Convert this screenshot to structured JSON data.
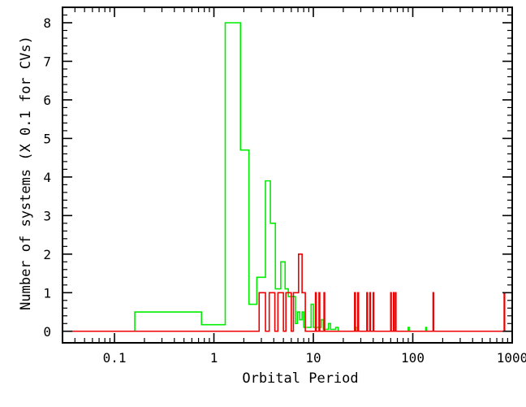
{
  "chart_data": {
    "type": "line",
    "xlabel": "Orbital Period",
    "ylabel": "Number of systems (X 0.1 for CVs)",
    "x_scale": "log",
    "xlim": [
      0.03,
      1000
    ],
    "ylim": [
      -0.3,
      8.4
    ],
    "x_major_ticks": [
      {
        "value": 0.1,
        "label": "0.1"
      },
      {
        "value": 1,
        "label": "1"
      },
      {
        "value": 10,
        "label": "10"
      },
      {
        "value": 100,
        "label": "100"
      },
      {
        "value": 1000,
        "label": "1000"
      }
    ],
    "y_major_ticks": [
      {
        "value": 0,
        "label": "0"
      },
      {
        "value": 1,
        "label": "1"
      },
      {
        "value": 2,
        "label": "2"
      },
      {
        "value": 3,
        "label": "3"
      },
      {
        "value": 4,
        "label": "4"
      },
      {
        "value": 5,
        "label": "5"
      },
      {
        "value": 6,
        "label": "6"
      },
      {
        "value": 7,
        "label": "7"
      },
      {
        "value": 8,
        "label": "8"
      }
    ],
    "grid": false,
    "series": [
      {
        "color": "#00ee00",
        "style": "step",
        "points": [
          [
            0.16,
            0
          ],
          [
            0.16,
            0.5
          ],
          [
            0.75,
            0.5
          ],
          [
            0.75,
            0.17
          ],
          [
            1.3,
            0.17
          ],
          [
            1.3,
            8.0
          ],
          [
            1.85,
            8.0
          ],
          [
            1.85,
            4.7
          ],
          [
            2.25,
            4.7
          ],
          [
            2.25,
            0.7
          ],
          [
            2.7,
            0.7
          ],
          [
            2.7,
            1.4
          ],
          [
            3.3,
            1.4
          ],
          [
            3.3,
            3.9
          ],
          [
            3.7,
            3.9
          ],
          [
            3.7,
            2.8
          ],
          [
            4.15,
            2.8
          ],
          [
            4.15,
            1.1
          ],
          [
            4.7,
            1.1
          ],
          [
            4.7,
            1.8
          ],
          [
            5.2,
            1.8
          ],
          [
            5.2,
            1.1
          ],
          [
            5.6,
            1.1
          ],
          [
            5.6,
            0.9
          ],
          [
            6.6,
            0.9
          ],
          [
            6.6,
            0.2
          ],
          [
            6.9,
            0.2
          ],
          [
            6.9,
            0.5
          ],
          [
            7.3,
            0.5
          ],
          [
            7.3,
            0.3
          ],
          [
            7.7,
            0.3
          ],
          [
            7.7,
            0.5
          ],
          [
            8.0,
            0.5
          ],
          [
            8.0,
            0.1
          ],
          [
            9.5,
            0.1
          ],
          [
            9.5,
            0.7
          ],
          [
            10.0,
            0.7
          ],
          [
            10.0,
            0.1
          ],
          [
            12.0,
            0.1
          ],
          [
            12.0,
            0.3
          ],
          [
            12.6,
            0.3
          ],
          [
            12.6,
            0.05
          ],
          [
            14.2,
            0.05
          ],
          [
            14.2,
            0.2
          ],
          [
            14.9,
            0.2
          ],
          [
            14.9,
            0.05
          ],
          [
            16.8,
            0.05
          ],
          [
            16.8,
            0.1
          ],
          [
            17.8,
            0.1
          ],
          [
            17.8,
            0
          ],
          [
            27.0,
            0
          ],
          [
            27.0,
            0.1
          ],
          [
            28.0,
            0.1
          ],
          [
            28.0,
            0
          ],
          [
            90.0,
            0
          ],
          [
            90.0,
            0.1
          ],
          [
            92.0,
            0.1
          ],
          [
            92.0,
            0
          ],
          [
            135.0,
            0
          ],
          [
            135.0,
            0.1
          ],
          [
            138.0,
            0.1
          ],
          [
            138.0,
            0
          ]
        ]
      },
      {
        "color": "#ee0000",
        "style": "step",
        "points": [
          [
            0.03,
            0
          ],
          [
            2.85,
            0
          ],
          [
            2.85,
            1
          ],
          [
            3.3,
            1
          ],
          [
            3.3,
            0
          ],
          [
            3.6,
            0
          ],
          [
            3.6,
            1
          ],
          [
            4.1,
            1
          ],
          [
            4.1,
            0
          ],
          [
            4.4,
            0
          ],
          [
            4.4,
            1
          ],
          [
            5.0,
            1
          ],
          [
            5.0,
            0
          ],
          [
            5.3,
            0
          ],
          [
            5.3,
            1
          ],
          [
            6.0,
            1
          ],
          [
            6.0,
            0
          ],
          [
            6.3,
            0
          ],
          [
            6.3,
            1
          ],
          [
            7.1,
            1
          ],
          [
            7.1,
            2
          ],
          [
            7.7,
            2
          ],
          [
            7.7,
            1
          ],
          [
            8.3,
            1
          ],
          [
            8.3,
            0
          ],
          [
            10.5,
            0
          ],
          [
            10.5,
            1
          ],
          [
            10.7,
            1
          ],
          [
            10.7,
            0
          ],
          [
            11.4,
            0
          ],
          [
            11.4,
            1
          ],
          [
            11.6,
            1
          ],
          [
            11.6,
            0
          ],
          [
            12.8,
            0
          ],
          [
            12.8,
            1
          ],
          [
            13.0,
            1
          ],
          [
            13.0,
            0
          ],
          [
            26.0,
            0
          ],
          [
            26.0,
            1
          ],
          [
            26.5,
            1
          ],
          [
            26.5,
            0
          ],
          [
            28.0,
            0
          ],
          [
            28.0,
            1
          ],
          [
            28.5,
            1
          ],
          [
            28.5,
            0
          ],
          [
            34.5,
            0
          ],
          [
            34.5,
            1
          ],
          [
            35.0,
            1
          ],
          [
            35.0,
            0
          ],
          [
            37.0,
            0
          ],
          [
            37.0,
            1
          ],
          [
            37.5,
            1
          ],
          [
            37.5,
            0
          ],
          [
            40.0,
            0
          ],
          [
            40.0,
            1
          ],
          [
            40.5,
            1
          ],
          [
            40.5,
            0
          ],
          [
            60.0,
            0
          ],
          [
            60.0,
            1
          ],
          [
            60.8,
            1
          ],
          [
            60.8,
            0
          ],
          [
            64.0,
            0
          ],
          [
            64.0,
            1
          ],
          [
            64.8,
            1
          ],
          [
            64.8,
            0
          ],
          [
            67.0,
            0
          ],
          [
            67.0,
            1
          ],
          [
            67.8,
            1
          ],
          [
            67.8,
            0
          ],
          [
            160.0,
            0
          ],
          [
            160.0,
            1
          ],
          [
            162.0,
            1
          ],
          [
            162.0,
            0
          ],
          [
            830.0,
            0
          ],
          [
            830.0,
            1
          ],
          [
            840.0,
            1
          ],
          [
            840.0,
            0
          ],
          [
            905.0,
            0
          ]
        ]
      }
    ]
  }
}
